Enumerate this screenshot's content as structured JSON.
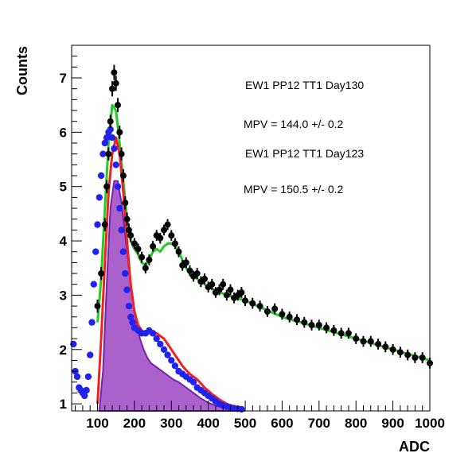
{
  "chart_data": {
    "type": "scatter",
    "xlabel": "ADC",
    "ylabel": "Counts",
    "xlim": [
      30,
      1000
    ],
    "ylim": [
      0.87,
      7.6
    ],
    "x_ticks": [
      100,
      200,
      300,
      400,
      500,
      600,
      700,
      800,
      900,
      1000
    ],
    "y_ticks": [
      1,
      2,
      3,
      4,
      5,
      6,
      7
    ],
    "grid": false,
    "annotations": [
      "EW1 PP12 TT1 Day130",
      "MPV = 144.0 +/- 0.2",
      "EW1 PP12 TT1 Day123",
      "MPV = 150.5 +/- 0.2"
    ],
    "series": [
      {
        "kind": "points-with-errors",
        "color": "#000000",
        "x": [
          100,
          110,
          120,
          125,
          130,
          135,
          140,
          145,
          150,
          155,
          160,
          165,
          170,
          175,
          180,
          185,
          190,
          200,
          210,
          220,
          230,
          240,
          250,
          260,
          270,
          280,
          290,
          300,
          310,
          320,
          330,
          340,
          350,
          360,
          370,
          380,
          390,
          400,
          410,
          420,
          430,
          440,
          450,
          460,
          470,
          480,
          490,
          500,
          520,
          540,
          560,
          580,
          600,
          620,
          640,
          660,
          680,
          700,
          720,
          740,
          760,
          780,
          800,
          820,
          840,
          860,
          880,
          900,
          920,
          940,
          960,
          980,
          1000
        ],
        "y": [
          2.8,
          3.4,
          4.3,
          5.0,
          5.6,
          6.2,
          6.8,
          7.1,
          6.9,
          6.5,
          6.0,
          5.6,
          5.2,
          4.7,
          4.4,
          4.2,
          4.1,
          3.95,
          3.85,
          3.7,
          3.5,
          3.65,
          3.9,
          4.1,
          4.05,
          4.2,
          4.3,
          4.1,
          3.95,
          3.8,
          3.55,
          3.6,
          3.45,
          3.35,
          3.4,
          3.25,
          3.3,
          3.15,
          3.2,
          3.05,
          3.1,
          3.2,
          3.0,
          3.1,
          2.95,
          3.0,
          3.05,
          2.9,
          2.85,
          2.8,
          2.7,
          2.75,
          2.65,
          2.6,
          2.55,
          2.5,
          2.45,
          2.45,
          2.4,
          2.35,
          2.3,
          2.3,
          2.2,
          2.15,
          2.15,
          2.1,
          2.05,
          2.0,
          1.95,
          1.9,
          1.85,
          1.85,
          1.75
        ],
        "errors": [
          0.12,
          0.12,
          0.12,
          0.12,
          0.12,
          0.12,
          0.14,
          0.14,
          0.14,
          0.13,
          0.12,
          0.12,
          0.12,
          0.12,
          0.12,
          0.12,
          0.12,
          0.1,
          0.1,
          0.1,
          0.1,
          0.1,
          0.1,
          0.1,
          0.1,
          0.1,
          0.1,
          0.1,
          0.1,
          0.1,
          0.1,
          0.1,
          0.1,
          0.1,
          0.1,
          0.1,
          0.1,
          0.1,
          0.1,
          0.1,
          0.1,
          0.1,
          0.1,
          0.1,
          0.1,
          0.1,
          0.1,
          0.1,
          0.1,
          0.1,
          0.1,
          0.1,
          0.1,
          0.1,
          0.1,
          0.1,
          0.1,
          0.1,
          0.1,
          0.1,
          0.1,
          0.1,
          0.1,
          0.1,
          0.1,
          0.1,
          0.1,
          0.1,
          0.1,
          0.1,
          0.1,
          0.1,
          0.1
        ]
      },
      {
        "kind": "points",
        "color": "#2222ee",
        "x": [
          35,
          40,
          45,
          50,
          55,
          60,
          65,
          70,
          75,
          80,
          85,
          90,
          95,
          100,
          105,
          110,
          115,
          120,
          125,
          130,
          135,
          140,
          145,
          150,
          155,
          160,
          165,
          170,
          175,
          180,
          185,
          190,
          195,
          200,
          210,
          220,
          230,
          240,
          250,
          260,
          270,
          280,
          290,
          300,
          310,
          320,
          330,
          340,
          350,
          360,
          370,
          380,
          390,
          400,
          410,
          420,
          430,
          440,
          450,
          460,
          470,
          480,
          490
        ],
        "y": [
          2.1,
          1.6,
          1.5,
          1.3,
          1.25,
          1.2,
          1.15,
          1.25,
          1.5,
          1.9,
          2.5,
          3.2,
          3.8,
          4.3,
          4.8,
          5.2,
          5.6,
          5.8,
          5.9,
          6.0,
          6.05,
          5.9,
          5.7,
          5.4,
          5.0,
          4.6,
          4.2,
          3.8,
          3.4,
          3.1,
          2.8,
          2.6,
          2.5,
          2.4,
          2.35,
          2.3,
          2.3,
          2.35,
          2.3,
          2.2,
          2.1,
          2.0,
          1.9,
          1.8,
          1.7,
          1.6,
          1.55,
          1.5,
          1.45,
          1.4,
          1.3,
          1.25,
          1.2,
          1.15,
          1.1,
          1.05,
          1.0,
          0.97,
          0.95,
          0.93,
          0.92,
          0.91,
          0.9
        ]
      },
      {
        "kind": "fit-line",
        "color": "#22cc22",
        "x": [
          100,
          110,
          120,
          130,
          140,
          150,
          160,
          170,
          180,
          190,
          200,
          210,
          220,
          230,
          240,
          250,
          260,
          270,
          280,
          290,
          300,
          310,
          320,
          330,
          340,
          350,
          360,
          380,
          400,
          450,
          500,
          550,
          600,
          650,
          700,
          750,
          800,
          850,
          900,
          950,
          1000
        ],
        "y": [
          2.5,
          3.3,
          4.6,
          5.8,
          6.5,
          6.4,
          5.8,
          5.1,
          4.4,
          4.0,
          3.85,
          3.75,
          3.6,
          3.55,
          3.65,
          3.8,
          3.85,
          3.8,
          3.9,
          3.95,
          3.95,
          3.9,
          3.8,
          3.65,
          3.5,
          3.4,
          3.35,
          3.25,
          3.15,
          3.0,
          2.9,
          2.75,
          2.6,
          2.5,
          2.4,
          2.3,
          2.2,
          2.1,
          2.0,
          1.9,
          1.8
        ]
      },
      {
        "kind": "fit-line",
        "color": "#ee2222",
        "x": [
          100,
          110,
          120,
          130,
          140,
          150,
          160,
          170,
          180,
          190,
          200,
          210,
          220,
          230,
          240,
          250,
          260,
          270,
          280,
          290,
          300,
          310,
          320,
          330,
          340,
          350,
          370,
          390,
          410,
          430,
          450,
          470,
          490
        ],
        "y": [
          1.0,
          2.2,
          3.6,
          4.9,
          5.6,
          5.9,
          5.6,
          4.9,
          4.0,
          3.2,
          2.7,
          2.45,
          2.35,
          2.3,
          2.3,
          2.3,
          2.3,
          2.25,
          2.2,
          2.1,
          2.0,
          1.9,
          1.8,
          1.7,
          1.62,
          1.55,
          1.45,
          1.3,
          1.18,
          1.08,
          1.0,
          0.95,
          0.91
        ]
      },
      {
        "kind": "filled-peak",
        "fill": "#9b45c3",
        "stroke": "#7722aa",
        "x": [
          105,
          115,
          125,
          135,
          145,
          155,
          165,
          175,
          185,
          195,
          205,
          215,
          225,
          235,
          245,
          255,
          265,
          275,
          285,
          295,
          305,
          320,
          340,
          360,
          380,
          400,
          420,
          440,
          460,
          480,
          500
        ],
        "y": [
          0.88,
          1.6,
          3.2,
          4.6,
          5.1,
          5.1,
          4.7,
          4.1,
          3.5,
          2.9,
          2.5,
          2.2,
          2.0,
          1.85,
          1.75,
          1.7,
          1.65,
          1.6,
          1.55,
          1.5,
          1.45,
          1.4,
          1.3,
          1.2,
          1.1,
          1.02,
          0.97,
          0.93,
          0.9,
          0.88,
          0.87
        ]
      }
    ]
  }
}
